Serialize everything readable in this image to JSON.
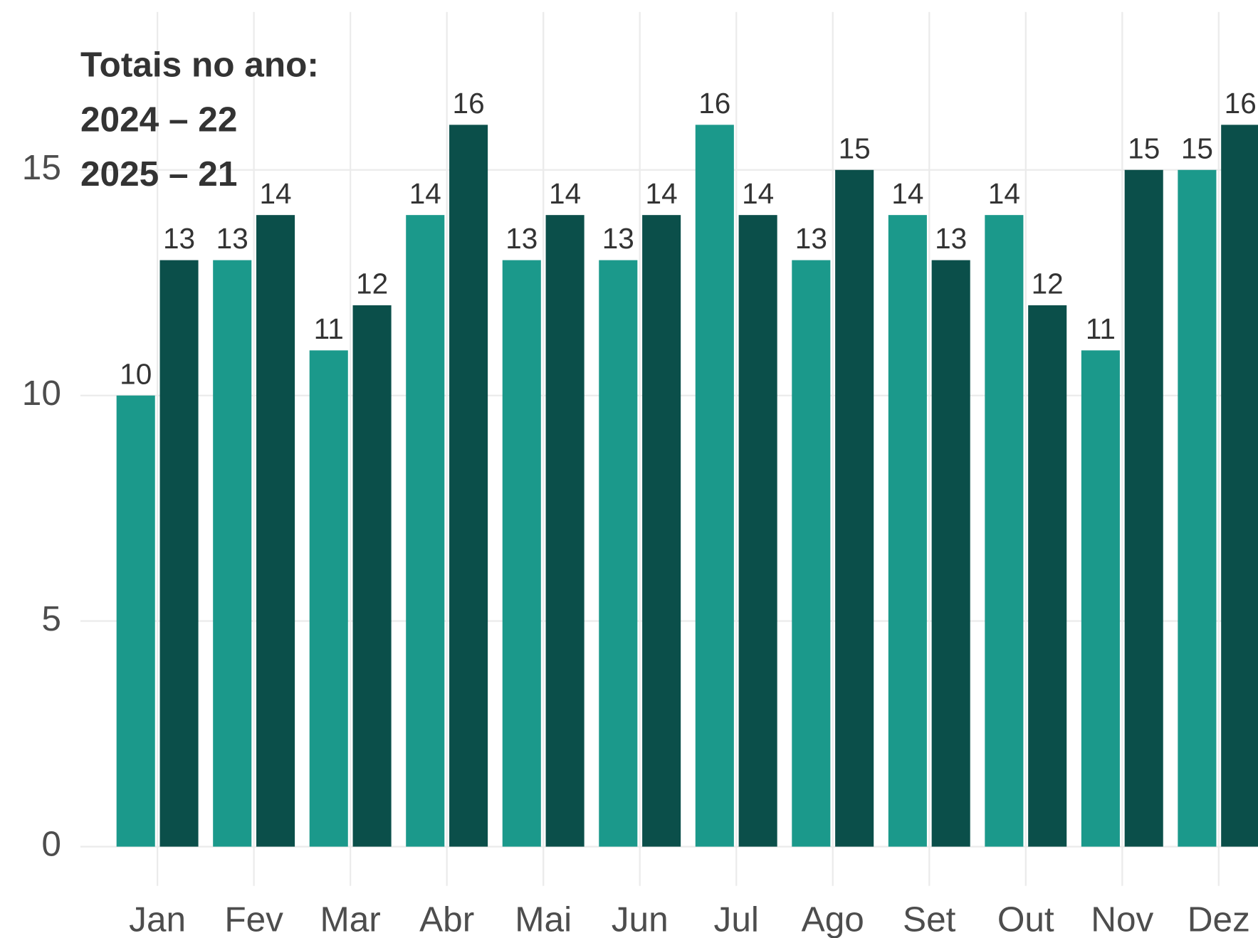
{
  "chart_data": {
    "type": "bar",
    "annotations": [
      "Totais no ano:",
      "2024 – 22",
      "2025 – 21"
    ],
    "categories": [
      "Jan",
      "Fev",
      "Mar",
      "Abr",
      "Mai",
      "Jun",
      "Jul",
      "Ago",
      "Set",
      "Out",
      "Nov",
      "Dez"
    ],
    "series": [
      {
        "color": "#1b998b",
        "values": [
          10,
          13,
          11,
          14,
          13,
          13,
          16,
          13,
          14,
          14,
          11,
          15
        ]
      },
      {
        "color": "#0b4f4a",
        "values": [
          13,
          14,
          12,
          16,
          14,
          14,
          14,
          15,
          13,
          12,
          15,
          16
        ]
      }
    ],
    "ylim": [
      -0.87,
      18.5
    ],
    "yticks": [
      0,
      5,
      10,
      15
    ],
    "grid": true
  }
}
